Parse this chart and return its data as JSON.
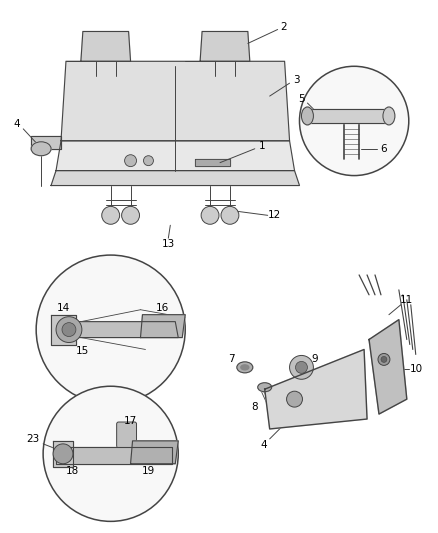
{
  "bg_color": "#ffffff",
  "line_color": "#444444",
  "label_color": "#000000",
  "fig_width": 4.38,
  "fig_height": 5.33
}
